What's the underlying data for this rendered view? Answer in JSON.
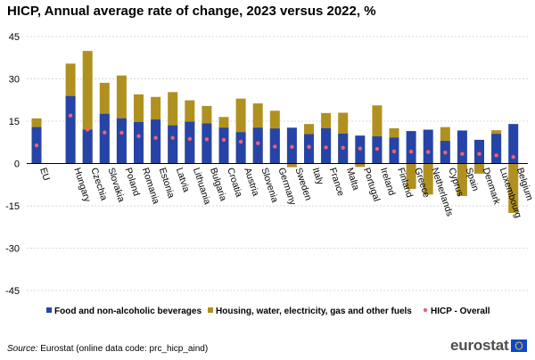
{
  "title": "HICP, Annual average rate of change, 2023 versus 2022, %",
  "source_label": "Source:",
  "source_text": "Eurostat (online data code: prc_hicp_aind)",
  "logo_text": "eurostat",
  "chart_data": {
    "type": "bar",
    "title": "HICP, Annual average rate of change, 2023 versus 2022, %",
    "xlabel": "",
    "ylabel": "",
    "ylim": [
      -45,
      45
    ],
    "yticks": [
      -45,
      -30,
      -15,
      0,
      15,
      30,
      45
    ],
    "grid": true,
    "legend_position": "bottom",
    "categories": [
      "EU",
      "Hungary",
      "Czechia",
      "Slovakia",
      "Poland",
      "Romania",
      "Estonia",
      "Latvia",
      "Lithuania",
      "Bulgaria",
      "Croatia",
      "Austria",
      "Slovenia",
      "Germany",
      "Sweden",
      "Italy",
      "France",
      "Malta",
      "Portugal",
      "Ireland",
      "Finland",
      "Greece",
      "Netherlands",
      "Cyprus",
      "Spain",
      "Denmark",
      "Luxembourg",
      "Belgium"
    ],
    "series": [
      {
        "name": "Food and non-alcoholic beverages",
        "kind": "bar",
        "color": "#2644a7",
        "values": [
          12.9,
          23.9,
          12.0,
          17.6,
          16.0,
          14.7,
          15.6,
          13.5,
          14.8,
          14.2,
          12.7,
          11.1,
          12.7,
          12.4,
          12.7,
          10.4,
          12.5,
          10.6,
          9.9,
          9.6,
          9.2,
          11.5,
          12.0,
          8.0,
          11.7,
          8.4,
          10.5,
          14.0
        ]
      },
      {
        "name": "Housing, water, electricity, gas and other fuels",
        "kind": "bar",
        "color": "#b09120",
        "values": [
          16.0,
          35.4,
          39.9,
          28.6,
          31.2,
          24.5,
          23.6,
          25.3,
          22.4,
          20.4,
          16.5,
          23.0,
          21.3,
          18.7,
          -1.3,
          14.0,
          17.9,
          18.0,
          -1.2,
          20.6,
          12.5,
          -9.0,
          -11.0,
          12.9,
          -11.5,
          -3.6,
          11.8,
          -17.5
        ]
      },
      {
        "name": "HICP - Overall",
        "kind": "point",
        "color": "#f06173",
        "values": [
          6.4,
          17.0,
          12.0,
          11.0,
          10.9,
          9.7,
          9.1,
          9.1,
          8.7,
          8.6,
          8.4,
          7.7,
          7.2,
          6.0,
          5.9,
          5.9,
          5.7,
          5.6,
          5.3,
          5.2,
          4.3,
          4.2,
          4.1,
          3.9,
          3.4,
          3.4,
          2.9,
          2.3
        ]
      }
    ]
  }
}
